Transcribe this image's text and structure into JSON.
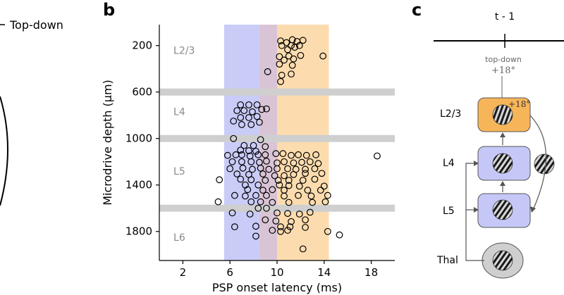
{
  "panel_a": {
    "legend_label": "Top-down"
  },
  "panel_b": {
    "letter": "b"
  },
  "panel_c": {
    "letter": "c",
    "time_label": "t - 1",
    "topdown_label": "top-down",
    "topdown_angle": "+18°",
    "l23_angle": "+18°",
    "box_labels": [
      "L2/3",
      "L4",
      "L5",
      "Thal"
    ],
    "colors": {
      "l23_fill": "#f7b55a",
      "box_fill": "#c5c8f7",
      "thal_fill": "#cfcfcf"
    }
  },
  "chart_data": {
    "type": "scatter",
    "title": "",
    "xlabel": "PSP onset latency (ms)",
    "ylabel": "Microdrive depth (µm)",
    "xlim": [
      0,
      20
    ],
    "ylim": [
      2050,
      20
    ],
    "xticks": [
      2,
      6,
      10,
      14,
      18
    ],
    "yticks": [
      200,
      600,
      1000,
      1400,
      1800
    ],
    "grid": false,
    "layer_labels": [
      {
        "label": "L2/3",
        "x": 1.2,
        "depth": 270
      },
      {
        "label": "L4",
        "x": 1.2,
        "depth": 800
      },
      {
        "label": "L5",
        "x": 1.2,
        "depth": 1310
      },
      {
        "label": "L6",
        "x": 1.2,
        "depth": 1880
      }
    ],
    "layer_boundaries": [
      600,
      1000,
      1600
    ],
    "shaded_regions": [
      {
        "name": "early",
        "x_from": 5.5,
        "x_to": 8.5,
        "color": "#c9ccf7"
      },
      {
        "name": "overlap",
        "x_from": 8.5,
        "x_to": 10,
        "color": "#d9c4d6"
      },
      {
        "name": "late",
        "x_from": 10,
        "x_to": 14.4,
        "color": "#fcdcae"
      }
    ],
    "series": [
      {
        "name": "PSP onsets",
        "points": [
          [
            10.3,
            160
          ],
          [
            10.8,
            175
          ],
          [
            11.3,
            150
          ],
          [
            11.7,
            165
          ],
          [
            12.2,
            155
          ],
          [
            10.4,
            200
          ],
          [
            11.2,
            200
          ],
          [
            11.9,
            200
          ],
          [
            10.9,
            235
          ],
          [
            11.5,
            215
          ],
          [
            13.9,
            290
          ],
          [
            10.2,
            295
          ],
          [
            11.0,
            290
          ],
          [
            12.0,
            285
          ],
          [
            10.6,
            325
          ],
          [
            11.4,
            315
          ],
          [
            10.2,
            360
          ],
          [
            11.3,
            370
          ],
          [
            9.2,
            425
          ],
          [
            10.4,
            455
          ],
          [
            11.2,
            445
          ],
          [
            10.3,
            510
          ],
          [
            6.9,
            710
          ],
          [
            7.6,
            710
          ],
          [
            8.3,
            710
          ],
          [
            6.6,
            760
          ],
          [
            7.2,
            760
          ],
          [
            7.9,
            770
          ],
          [
            8.7,
            750
          ],
          [
            9.1,
            745
          ],
          [
            6.9,
            820
          ],
          [
            7.6,
            820
          ],
          [
            8.3,
            810
          ],
          [
            6.3,
            850
          ],
          [
            7.0,
            880
          ],
          [
            7.8,
            880
          ],
          [
            8.5,
            860
          ],
          [
            6.3,
            1000
          ],
          [
            8.6,
            1010
          ],
          [
            7.2,
            1060
          ],
          [
            8.0,
            1060
          ],
          [
            9.0,
            1070
          ],
          [
            6.9,
            1100
          ],
          [
            7.6,
            1105
          ],
          [
            8.2,
            1110
          ],
          [
            5.8,
            1145
          ],
          [
            6.5,
            1140
          ],
          [
            7.0,
            1140
          ],
          [
            7.7,
            1150
          ],
          [
            8.4,
            1140
          ],
          [
            9.0,
            1140
          ],
          [
            9.9,
            1130
          ],
          [
            10.5,
            1130
          ],
          [
            11.2,
            1145
          ],
          [
            11.8,
            1140
          ],
          [
            12.5,
            1145
          ],
          [
            13.3,
            1140
          ],
          [
            18.5,
            1150
          ],
          [
            6.2,
            1200
          ],
          [
            7.0,
            1200
          ],
          [
            7.8,
            1200
          ],
          [
            8.5,
            1205
          ],
          [
            9.1,
            1195
          ],
          [
            10.0,
            1210
          ],
          [
            10.6,
            1200
          ],
          [
            11.4,
            1210
          ],
          [
            12.1,
            1205
          ],
          [
            12.8,
            1200
          ],
          [
            13.5,
            1215
          ],
          [
            6.0,
            1260
          ],
          [
            7.1,
            1255
          ],
          [
            7.9,
            1265
          ],
          [
            8.6,
            1255
          ],
          [
            9.3,
            1265
          ],
          [
            10.0,
            1260
          ],
          [
            10.9,
            1260
          ],
          [
            11.6,
            1265
          ],
          [
            12.4,
            1265
          ],
          [
            13.2,
            1260
          ],
          [
            6.6,
            1305
          ],
          [
            7.6,
            1310
          ],
          [
            8.8,
            1305
          ],
          [
            9.8,
            1320
          ],
          [
            10.6,
            1320
          ],
          [
            11.4,
            1310
          ],
          [
            12.4,
            1300
          ],
          [
            13.8,
            1300
          ],
          [
            5.1,
            1355
          ],
          [
            6.9,
            1350
          ],
          [
            7.8,
            1355
          ],
          [
            9.0,
            1360
          ],
          [
            10.1,
            1360
          ],
          [
            11.0,
            1360
          ],
          [
            12.2,
            1360
          ],
          [
            13.2,
            1350
          ],
          [
            7.3,
            1400
          ],
          [
            8.4,
            1400
          ],
          [
            10.2,
            1400
          ],
          [
            11.0,
            1405
          ],
          [
            11.9,
            1410
          ],
          [
            14.0,
            1410
          ],
          [
            7.5,
            1440
          ],
          [
            8.8,
            1445
          ],
          [
            9.6,
            1440
          ],
          [
            10.6,
            1445
          ],
          [
            12.6,
            1445
          ],
          [
            13.7,
            1445
          ],
          [
            6.4,
            1490
          ],
          [
            7.3,
            1495
          ],
          [
            8.2,
            1490
          ],
          [
            9.1,
            1490
          ],
          [
            10.6,
            1495
          ],
          [
            11.8,
            1490
          ],
          [
            12.9,
            1495
          ],
          [
            14.3,
            1490
          ],
          [
            5.0,
            1545
          ],
          [
            7.8,
            1545
          ],
          [
            8.6,
            1545
          ],
          [
            9.6,
            1550
          ],
          [
            11.0,
            1550
          ],
          [
            13.0,
            1550
          ],
          [
            14.1,
            1545
          ],
          [
            8.4,
            1600
          ],
          [
            9.1,
            1600
          ],
          [
            6.2,
            1640
          ],
          [
            7.7,
            1650
          ],
          [
            10.0,
            1640
          ],
          [
            10.9,
            1645
          ],
          [
            11.9,
            1650
          ],
          [
            12.8,
            1635
          ],
          [
            9.0,
            1700
          ],
          [
            9.9,
            1710
          ],
          [
            11.2,
            1715
          ],
          [
            12.4,
            1700
          ],
          [
            6.4,
            1760
          ],
          [
            8.2,
            1755
          ],
          [
            10.3,
            1760
          ],
          [
            11.1,
            1760
          ],
          [
            12.4,
            1765
          ],
          [
            9.6,
            1790
          ],
          [
            10.3,
            1800
          ],
          [
            10.9,
            1790
          ],
          [
            14.3,
            1800
          ],
          [
            15.3,
            1830
          ],
          [
            8.2,
            1840
          ],
          [
            12.2,
            1950
          ]
        ]
      }
    ]
  }
}
